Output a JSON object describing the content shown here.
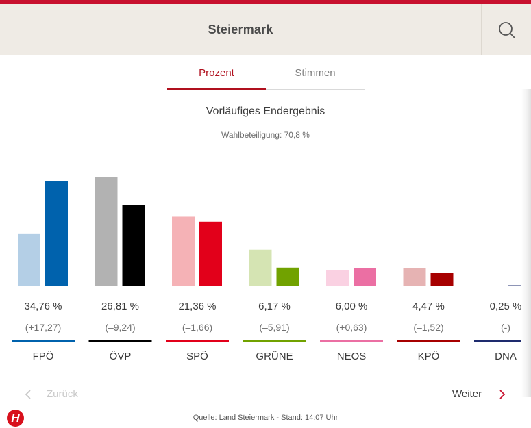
{
  "header": {
    "title": "Steiermark"
  },
  "icons": {
    "search": "search-icon",
    "back": "chevron-left-icon",
    "next": "chevron-right-icon",
    "logo": "heute-logo"
  },
  "tabs": [
    {
      "label": "Prozent",
      "active": true
    },
    {
      "label": "Stimmen",
      "active": false
    }
  ],
  "result_title": "Vorläufiges Endergebnis",
  "turnout": "Wahlbeteiligung: 70,8 %",
  "navigation": {
    "back_label": "Zurück",
    "next_label": "Weiter"
  },
  "logo_text": "H",
  "source": "Quelle: Land Steiermark - Stand: 14:07 Uhr",
  "chart_data": {
    "type": "bar",
    "title": "",
    "xlabel": "",
    "ylabel": "",
    "categories": [
      "FPÖ",
      "ÖVP",
      "SPÖ",
      "GRÜNE",
      "NEOS",
      "KPÖ",
      "DNA"
    ],
    "series": [
      {
        "values": [
          17.49,
          36.05,
          23.02,
          12.08,
          5.37,
          5.99,
          null
        ]
      },
      {
        "values": [
          34.76,
          26.81,
          21.36,
          6.17,
          6.0,
          4.47,
          0.25
        ]
      }
    ],
    "value_labels": [
      "34,76 %",
      "26,81 %",
      "21,36 %",
      "6,17 %",
      "6,00 %",
      "4,47 %",
      "0,25 %"
    ],
    "change_labels": [
      "(+17,27)",
      "(–9,24)",
      "(–1,66)",
      "(–5,91)",
      "(+0,63)",
      "(–1,52)",
      "(-)"
    ],
    "colors": {
      "current": [
        "#0062ad",
        "#000000",
        "#e2001a",
        "#71a200",
        "#eb6fa3",
        "#a70000",
        "#1e2b6e"
      ],
      "previous": [
        "#b4cfe6",
        "#b2b2b2",
        "#f5b2b6",
        "#d5e4b3",
        "#fad1e2",
        "#e6b3b3",
        "#c6cae0"
      ]
    },
    "ylim": [
      0,
      36.05
    ],
    "grid": false,
    "legend": "none"
  }
}
